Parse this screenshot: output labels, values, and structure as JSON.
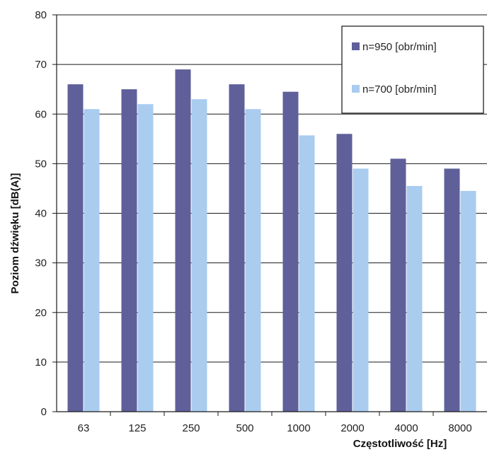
{
  "chart_data": {
    "type": "bar",
    "xlabel": "Częstotliwość [Hz]",
    "ylabel": "Poziom dźwięku [dB(A)]",
    "ylim": [
      0,
      80
    ],
    "yticks": [
      "0",
      "10",
      "20",
      "30",
      "40",
      "50",
      "60",
      "70",
      "80"
    ],
    "categories": [
      "63",
      "125",
      "250",
      "500",
      "1000",
      "2000",
      "4000",
      "8000"
    ],
    "series": [
      {
        "name": "n=950 [obr/min]",
        "color": "#5f5f9a",
        "values": [
          66,
          65,
          69,
          66,
          64.5,
          56,
          51,
          49
        ]
      },
      {
        "name": "n=700 [obr/min]",
        "color": "#a9ccef",
        "values": [
          61,
          62,
          63,
          61,
          55.7,
          49,
          45.5,
          44.5
        ]
      }
    ],
    "grid": true,
    "legend_position": "top-right"
  }
}
